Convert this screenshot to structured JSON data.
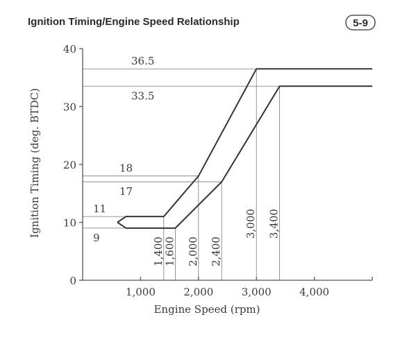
{
  "chart_data": {
    "type": "line",
    "title": "Ignition Timing/Engine Speed Relationship",
    "figure_label": "5-9",
    "xlabel": "Engine Speed  (rpm)",
    "ylabel": "Ignition Timing (deg. BTDC)",
    "xlim": [
      0,
      5000
    ],
    "ylim": [
      0,
      40
    ],
    "xticks": [
      1000,
      2000,
      3000,
      4000
    ],
    "xtick_labels": [
      "1,000",
      "2,000",
      "3,000",
      "4,000"
    ],
    "yticks": [
      0,
      10,
      20,
      30,
      40
    ],
    "ytick_labels": [
      "0",
      "10",
      "20",
      "30",
      "40"
    ],
    "grid": false,
    "series": [
      {
        "points": [
          [
            600,
            10
          ],
          [
            750,
            11
          ],
          [
            1400,
            11
          ],
          [
            2000,
            18
          ],
          [
            3000,
            36.5
          ],
          [
            5000,
            36.5
          ]
        ]
      },
      {
        "points": [
          [
            600,
            10
          ],
          [
            750,
            9
          ],
          [
            1600,
            9
          ],
          [
            2400,
            17
          ],
          [
            3400,
            33.5
          ],
          [
            5000,
            33.5
          ]
        ]
      }
    ],
    "reference_lines": {
      "horizontal": [
        {
          "y": 36.5,
          "label": "36.5"
        },
        {
          "y": 33.5,
          "label": "33.5"
        },
        {
          "y": 18,
          "label": "18"
        },
        {
          "y": 17,
          "label": "17"
        },
        {
          "y": 11,
          "label": "11"
        },
        {
          "y": 9,
          "label": "9"
        }
      ],
      "vertical": [
        {
          "x": 1400,
          "label": "1,400"
        },
        {
          "x": 1600,
          "label": "1,600"
        },
        {
          "x": 2000,
          "label": "2,000"
        },
        {
          "x": 2400,
          "label": "2,400"
        },
        {
          "x": 3000,
          "label": "3,000"
        },
        {
          "x": 3400,
          "label": "3,400"
        }
      ]
    }
  }
}
